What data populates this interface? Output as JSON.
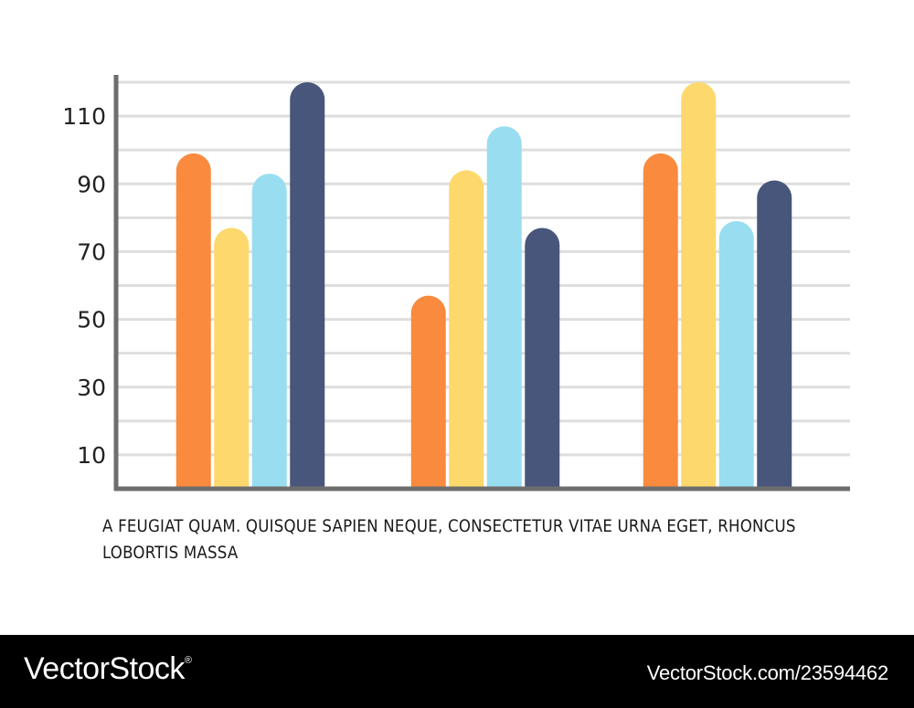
{
  "chart_data": {
    "type": "bar",
    "title": "",
    "xlabel": "",
    "ylabel": "",
    "categories": [
      "",
      "",
      ""
    ],
    "ylim": [
      0,
      120
    ],
    "y_ticks": [
      10,
      30,
      50,
      70,
      90,
      110
    ],
    "grid": true,
    "legend": "none",
    "bar_style": "rounded-top",
    "series": [
      {
        "color": "#F98A3E",
        "values": [
          99,
          57,
          99
        ]
      },
      {
        "color": "#FDD86C",
        "values": [
          77,
          94,
          120
        ]
      },
      {
        "color": "#99DDF0",
        "values": [
          93,
          107,
          79
        ]
      },
      {
        "color": "#47567A",
        "values": [
          120,
          77,
          91
        ]
      }
    ],
    "colors": {
      "axis": "#6e6e6e",
      "grid": "#dedede",
      "tick_text": "#222222"
    }
  },
  "caption": "A FEUGIAT QUAM. QUISQUE SAPIEN NEQUE, CONSECTETUR VITAE URNA EGET, RHONCUS LOBORTIS MASSA",
  "footer": {
    "brand": "VectorStock",
    "brand_mark": "®",
    "image_id": "VectorStock.com/23594462"
  }
}
